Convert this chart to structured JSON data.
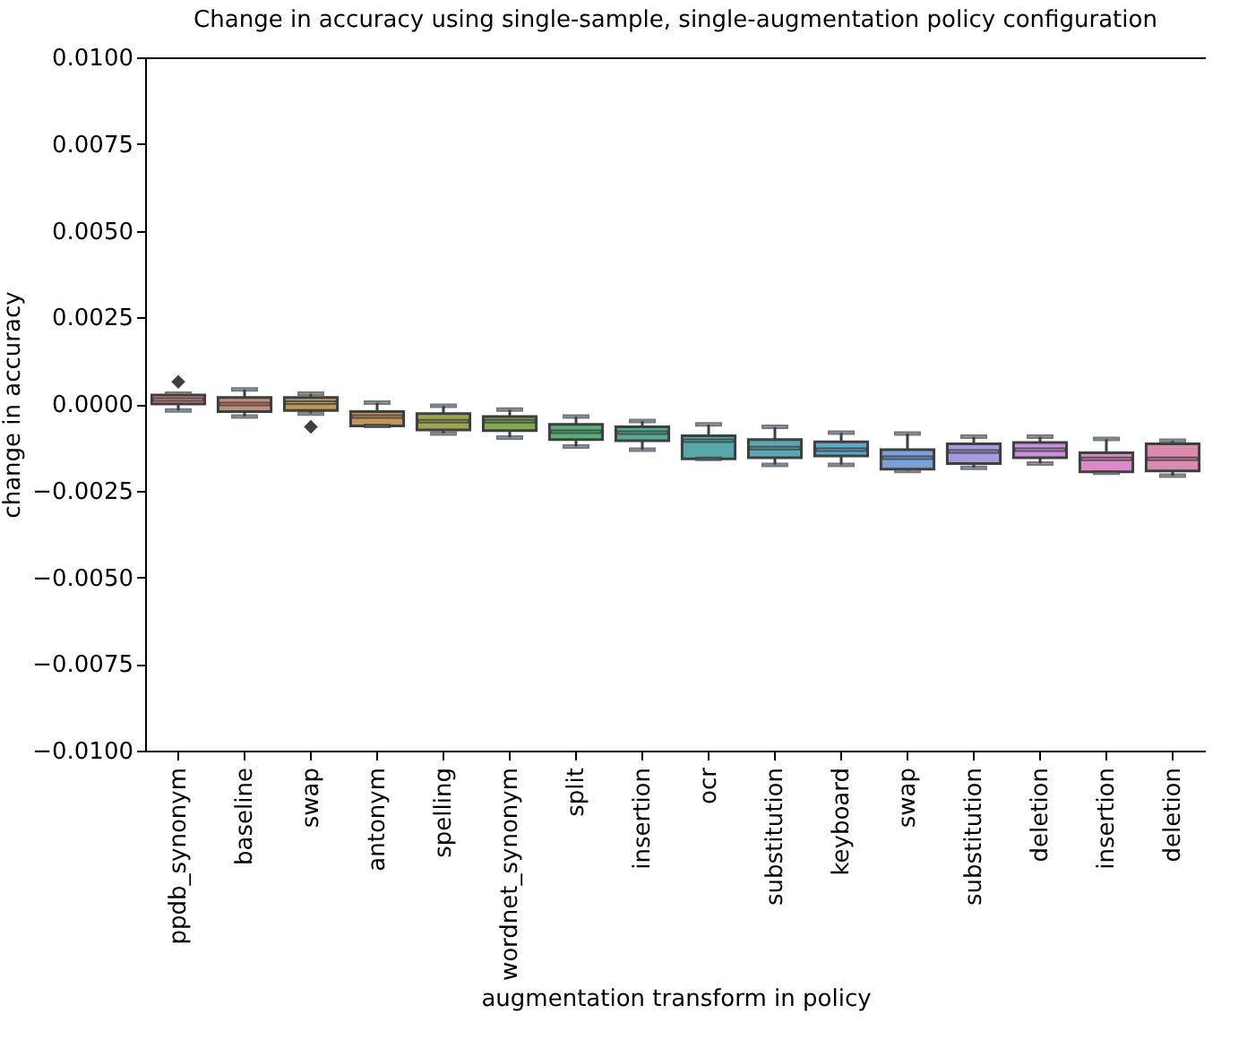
{
  "chart_data": {
    "type": "box",
    "title": "Change in accuracy using single-sample, single-augmentation policy configuration",
    "xlabel": "augmentation transform in policy",
    "ylabel": "change in accuracy",
    "categories": [
      "ppdb_synonym",
      "baseline",
      "swap",
      "antonym",
      "spelling",
      "wordnet_synonym",
      "split",
      "insertion",
      "ocr",
      "substitution",
      "keyboard",
      "swap",
      "substitution",
      "deletion",
      "insertion",
      "deletion"
    ],
    "colors": [
      "#d98a8a",
      "#c78a76",
      "#b99a5b",
      "#c49358",
      "#9fa550",
      "#7ea851",
      "#56b07a",
      "#55ab95",
      "#57a8a8",
      "#5aa6b3",
      "#5ba8c8",
      "#7aa0d9",
      "#a59ce0",
      "#c890dc",
      "#d98ac7",
      "#dc8aae"
    ],
    "boxes": [
      {
        "low": -0.00019,
        "q1": 0.0,
        "median": 0.00013,
        "q3": 0.00026,
        "high": 0.0003,
        "outliers": [
          0.00064
        ]
      },
      {
        "low": -0.00036,
        "q1": -0.00022,
        "median": 0.0,
        "q3": 0.00019,
        "high": 0.00042
      },
      {
        "low": -0.00028,
        "q1": -0.00019,
        "median": 4e-05,
        "q3": 0.00019,
        "high": 0.0003,
        "outliers": [
          -0.00066
        ]
      },
      {
        "low": -0.00063,
        "q1": -0.00063,
        "median": -0.00036,
        "q3": -0.00022,
        "high": 4e-05
      },
      {
        "low": -0.00085,
        "q1": -0.00075,
        "median": -0.0005,
        "q3": -0.00028,
        "high": -5e-05
      },
      {
        "low": -0.00097,
        "q1": -0.00077,
        "median": -0.0005,
        "q3": -0.00036,
        "high": -0.00016
      },
      {
        "low": -0.00123,
        "q1": -0.00103,
        "median": -0.0008,
        "q3": -0.00059,
        "high": -0.00036
      },
      {
        "low": -0.00132,
        "q1": -0.00106,
        "median": -0.00083,
        "q3": -0.00066,
        "high": -0.00049
      },
      {
        "low": -0.00158,
        "q1": -0.00158,
        "median": -0.00106,
        "q3": -0.00092,
        "high": -0.00059
      },
      {
        "low": -0.00176,
        "q1": -0.00155,
        "median": -0.00127,
        "q3": -0.00103,
        "high": -0.00066
      },
      {
        "low": -0.00176,
        "q1": -0.0015,
        "median": -0.00132,
        "q3": -0.00109,
        "high": -0.00083
      },
      {
        "low": -0.00193,
        "q1": -0.00188,
        "median": -0.00155,
        "q3": -0.00132,
        "high": -0.00085
      },
      {
        "low": -0.00184,
        "q1": -0.00172,
        "median": -0.00137,
        "q3": -0.00115,
        "high": -0.00094
      },
      {
        "low": -0.00172,
        "q1": -0.00155,
        "median": -0.00132,
        "q3": -0.00111,
        "high": -0.00094
      },
      {
        "low": -0.00198,
        "q1": -0.00196,
        "median": -0.00158,
        "q3": -0.00141,
        "high": -0.00101
      },
      {
        "low": -0.00207,
        "q1": -0.00193,
        "median": -0.00158,
        "q3": -0.00115,
        "high": -0.00106
      }
    ],
    "ylim": [
      -0.01,
      0.01
    ],
    "yticks": [
      {
        "value": -0.01,
        "label": "−0.0100"
      },
      {
        "value": -0.0075,
        "label": "−0.0075"
      },
      {
        "value": -0.005,
        "label": "−0.0050"
      },
      {
        "value": -0.0025,
        "label": "−0.0025"
      },
      {
        "value": 0,
        "label": "0.0000"
      },
      {
        "value": 0.0025,
        "label": "0.0025"
      },
      {
        "value": 0.005,
        "label": "0.0050"
      },
      {
        "value": 0.0075,
        "label": "0.0075"
      },
      {
        "value": 0.01,
        "label": "0.0100"
      }
    ],
    "grid": false,
    "legend": false
  }
}
